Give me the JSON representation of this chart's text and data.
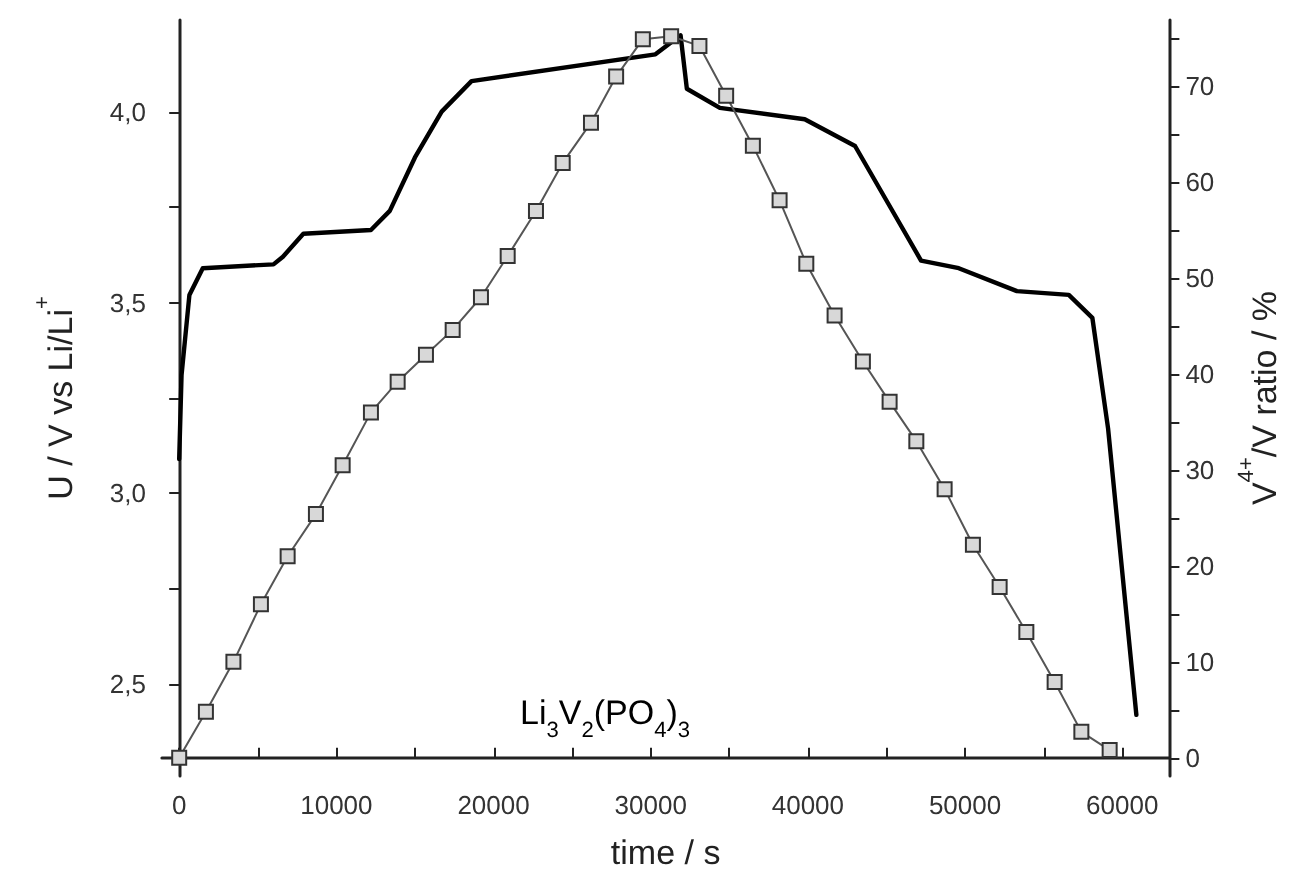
{
  "chart_data": {
    "type": "line",
    "xlabel": "time / s",
    "ylabel": "U / V vs Li/Li$^{+}$",
    "y2label": "V$^{4+}$/V ratio / %",
    "annotations": [
      "Li$_{3}$V$_{2}$(PO$_{4}$)$_{3}$"
    ],
    "xlim": [
      -1100,
      63000
    ],
    "ylim": [
      2.26,
      4.24
    ],
    "y2lim": [
      -1.9,
      76.9
    ],
    "xticks": [
      0,
      {
        "value": 5000,
        "label": null
      },
      10000,
      {
        "value": 15000,
        "label": null
      },
      20000,
      {
        "value": 25000,
        "label": null
      },
      30000,
      {
        "value": 35000,
        "label": null
      },
      40000,
      {
        "value": 45000,
        "label": null
      },
      50000,
      {
        "value": 55000,
        "label": null
      },
      60000
    ],
    "yticks": [
      {
        "value": 2.5,
        "label": "2,5"
      },
      {
        "value": 2.75,
        "label": null
      },
      {
        "value": 3.0,
        "label": "3,0"
      },
      {
        "value": 3.25,
        "label": null
      },
      {
        "value": 3.5,
        "label": "3,5"
      },
      {
        "value": 3.75,
        "label": null
      },
      {
        "value": 4.0,
        "label": "4,0"
      }
    ],
    "y2ticks": [
      0,
      {
        "value": 5,
        "label": null
      },
      10,
      {
        "value": 15,
        "label": null
      },
      20,
      {
        "value": 25,
        "label": null
      },
      30,
      {
        "value": 35,
        "label": null
      },
      40,
      {
        "value": 45,
        "label": null
      },
      50,
      {
        "value": 55,
        "label": null
      },
      60,
      {
        "value": 65,
        "label": null
      },
      70,
      {
        "value": 75,
        "label": null
      }
    ],
    "grid": false,
    "series": [
      {
        "color": "#000000",
        "marker": "none",
        "line_style": "solid",
        "x": [
          0,
          150,
          650,
          1500,
          6000,
          6600,
          7900,
          12200,
          13400,
          15000,
          16700,
          18600,
          30300,
          31900,
          32300,
          34400,
          39800,
          43000,
          45100,
          47200,
          49600,
          53300,
          56600,
          58100,
          59100,
          60900
        ],
        "values": [
          3.09,
          3.31,
          3.52,
          3.59,
          3.6,
          3.62,
          3.68,
          3.69,
          3.74,
          3.88,
          4.0,
          4.08,
          4.15,
          4.2,
          4.06,
          4.01,
          3.98,
          3.91,
          3.76,
          3.61,
          3.59,
          3.53,
          3.52,
          3.46,
          3.17,
          2.42
        ]
      },
      {
        "color": "#555555",
        "marker": "square",
        "line_style": "solid",
        "axis": "y2",
        "x": [
          0,
          1700,
          3450,
          5200,
          6900,
          8700,
          10400,
          12200,
          13900,
          15700,
          17400,
          19200,
          20900,
          22700,
          24400,
          26200,
          27800,
          29500,
          31300,
          33100,
          34800,
          36500,
          38200,
          39900,
          41700,
          43500,
          45200,
          46900,
          48700,
          50500,
          52200,
          53900,
          55700,
          57400,
          59200
        ],
        "values": [
          0,
          4.8,
          10,
          16,
          21,
          25.4,
          30.5,
          36,
          39.2,
          42,
          44.6,
          48,
          52.3,
          57,
          62,
          66.2,
          71,
          74.9,
          75.2,
          74.2,
          69,
          63.8,
          58.1,
          51.5,
          46.1,
          41.3,
          37.1,
          33,
          28,
          22.2,
          17.8,
          13.1,
          7.9,
          2.7,
          0.8
        ]
      }
    ]
  }
}
